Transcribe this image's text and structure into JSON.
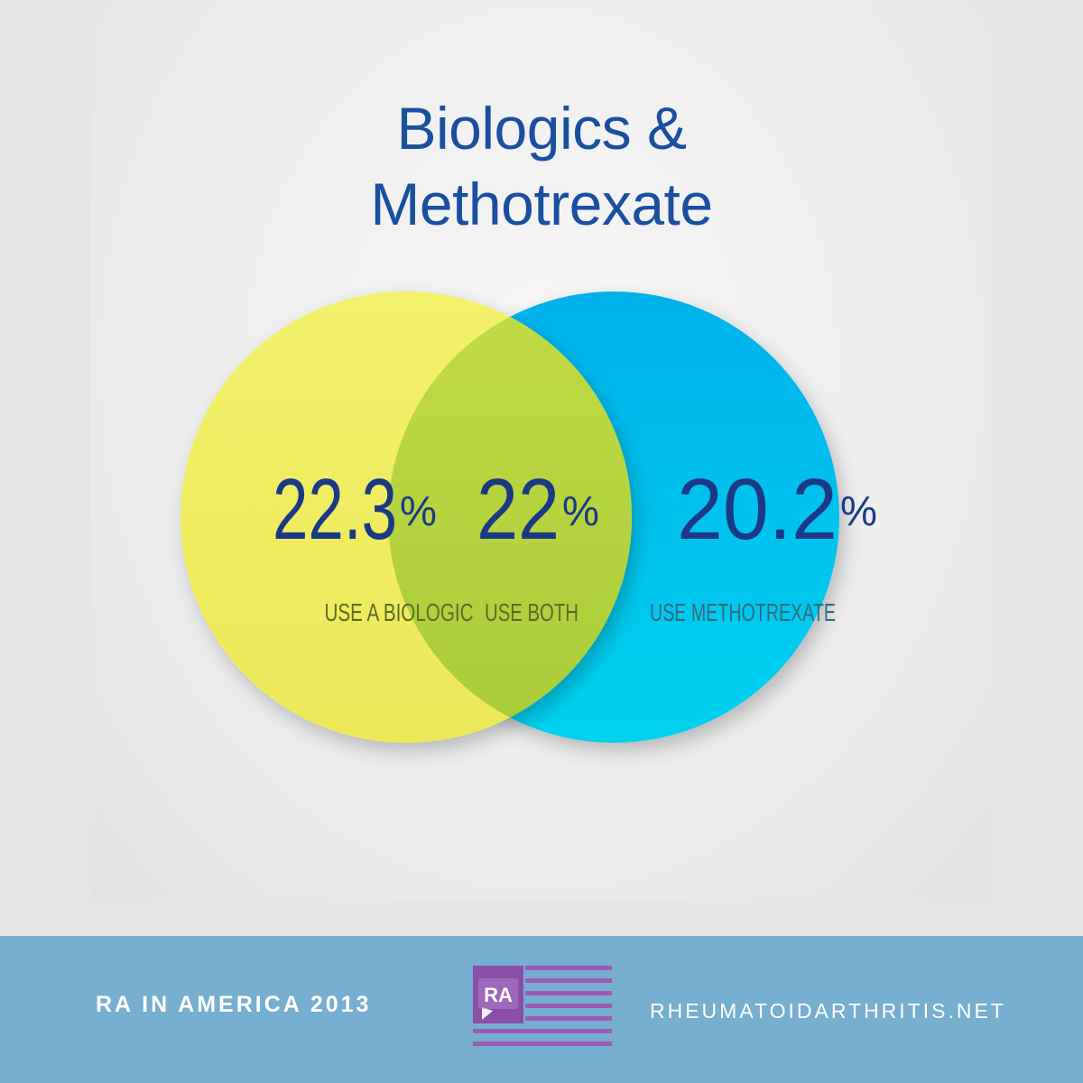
{
  "title": {
    "line1": "Biologics &",
    "line2": "Methotrexate"
  },
  "venn": {
    "left": {
      "value": "22.3",
      "unit": "%",
      "label": "USE A BIOLOGIC",
      "color": "#f1ee62"
    },
    "center": {
      "value": "22",
      "unit": "%",
      "label": "USE BOTH",
      "color": "#b8d43a"
    },
    "right": {
      "value": "20.2",
      "unit": "%",
      "label": "USE METHOTREXATE",
      "color": "#06c2ec"
    },
    "number_color": "#1a3a86",
    "label_color": "#5b6b2a"
  },
  "footer": {
    "left_text": "RA IN AMERICA 2013",
    "logo_text": "RA",
    "right_text": "RHEUMATOIDARTHRITIS.NET",
    "background": "#76aed0",
    "logo_color": "#9b5bb5"
  }
}
